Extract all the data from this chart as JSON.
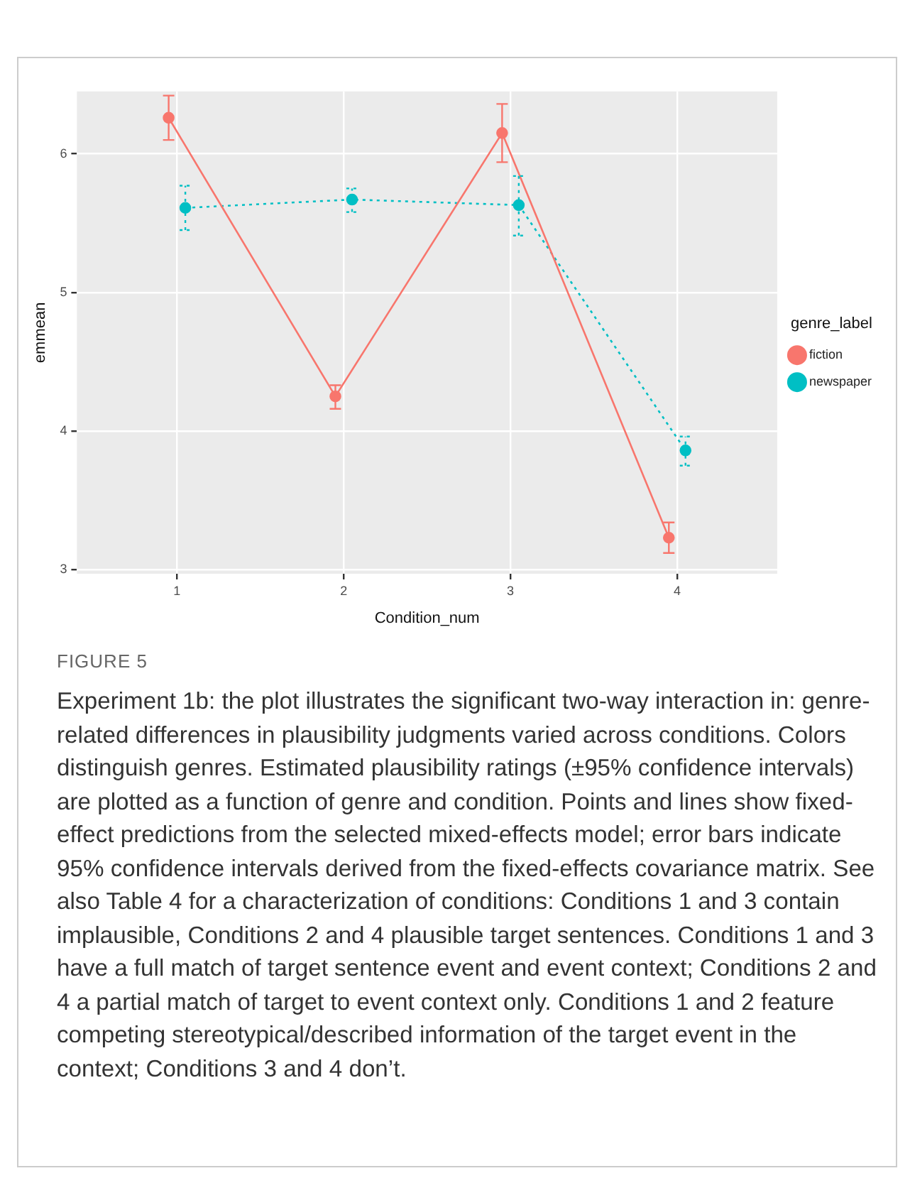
{
  "chart_data": {
    "type": "line",
    "xlabel": "Condition_num",
    "ylabel": "emmean",
    "legend_title": "genre_label",
    "legend": "right",
    "grid": true,
    "marker": "circle",
    "xlim": [
      0.4,
      4.6
    ],
    "xticks": [
      1,
      2,
      3,
      4
    ],
    "ylim": [
      2.97,
      6.45
    ],
    "yticks": [
      3,
      4,
      5,
      6
    ],
    "series": [
      {
        "name": "fiction",
        "color": "#f8766d",
        "line_style": "solid",
        "x": [
          0.95,
          1.95,
          2.95,
          3.95
        ],
        "values": [
          6.26,
          4.25,
          6.15,
          3.23
        ],
        "errors": [
          [
            6.1,
            6.42
          ],
          [
            4.16,
            4.33
          ],
          [
            5.94,
            6.36
          ],
          [
            3.12,
            3.34
          ]
        ]
      },
      {
        "name": "newspaper",
        "color": "#00bfc4",
        "line_style": "dotted",
        "x": [
          1.05,
          2.05,
          3.05,
          4.05
        ],
        "values": [
          5.61,
          5.67,
          5.63,
          3.86
        ],
        "errors": [
          [
            5.45,
            5.77
          ],
          [
            5.58,
            5.75
          ],
          [
            5.41,
            5.84
          ],
          [
            3.75,
            3.96
          ]
        ]
      }
    ],
    "annotations": [
      "FIGURE 5",
      "Experiment 1b: the plot illustrates the significant two-way interaction in: genre-related differences in plausibility judgments varied across conditions. Colors distinguish genres. Estimated plausibility ratings (±95% confidence intervals) are plotted as a function of genre and condition. Points and lines show fixed-effect predictions from the selected mixed-effects model; error bars indicate 95% confidence intervals derived from the fixed-effects covariance matrix. See also Table 4 for a characterization of conditions: Conditions 1 and 3 contain implausible, Conditions 2 and 4 plausible target sentences. Conditions 1 and 3 have a full match of target sentence event and event context; Conditions 2 and 4 a partial match of target to event context only. Conditions 1 and 2 feature competing stereotypical/described information of the target event in the context; Conditions 3 and 4 don’t."
    ]
  }
}
